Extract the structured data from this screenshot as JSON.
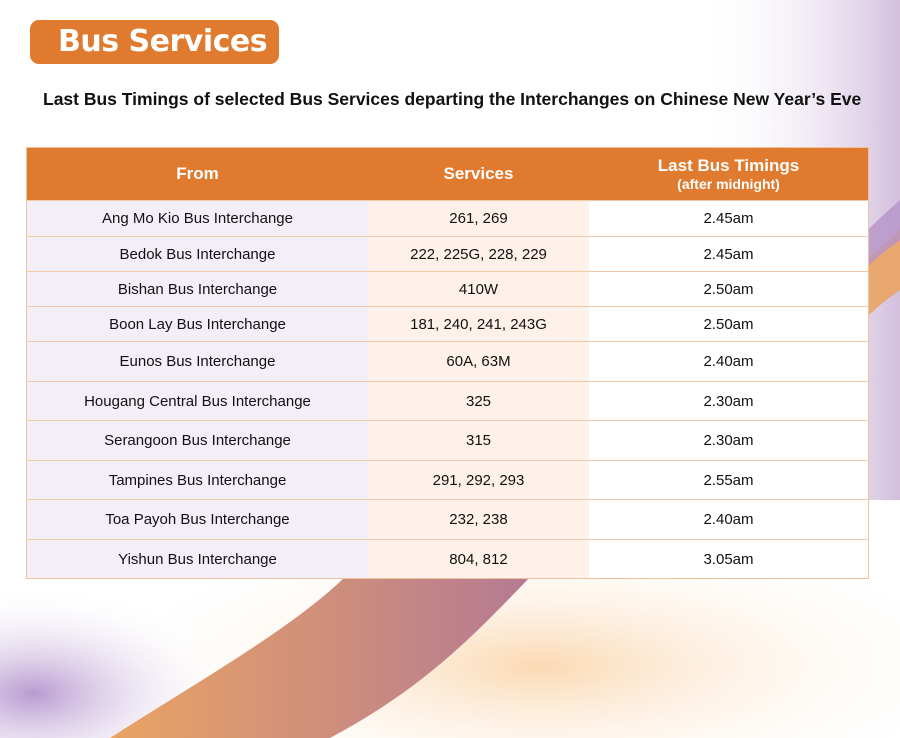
{
  "banner": {
    "title": "Bus Services"
  },
  "subtitle": "Last Bus Timings of selected Bus Services departing the Interchanges on Chinese New Year’s Eve",
  "table": {
    "headers": {
      "from": "From",
      "services": "Services",
      "timings": "Last Bus Timings",
      "timings_note": "(after midnight)"
    },
    "rows": [
      {
        "from": "Ang Mo Kio Bus Interchange",
        "services": "261, 269",
        "time": "2.45am"
      },
      {
        "from": "Bedok Bus Interchange",
        "services": "222, 225G, 228, 229",
        "time": "2.45am"
      },
      {
        "from": "Bishan Bus Interchange",
        "services": "410W",
        "time": "2.50am"
      },
      {
        "from": "Boon Lay Bus Interchange",
        "services": "181, 240, 241, 243G",
        "time": "2.50am"
      },
      {
        "from": "Eunos Bus Interchange",
        "services": "60A, 63M",
        "time": "2.40am"
      },
      {
        "from": "Hougang Central Bus Interchange",
        "services": "325",
        "time": "2.30am"
      },
      {
        "from": "Serangoon Bus Interchange",
        "services": "315",
        "time": "2.30am"
      },
      {
        "from": "Tampines Bus Interchange",
        "services": "291, 292, 293",
        "time": "2.55am"
      },
      {
        "from": "Toa Payoh Bus Interchange",
        "services": "232, 238",
        "time": "2.40am"
      },
      {
        "from": "Yishun Bus Interchange",
        "services": "804, 812",
        "time": "3.05am"
      }
    ]
  },
  "colors": {
    "accent": "#e07a2e",
    "purple": "#b497c9"
  }
}
